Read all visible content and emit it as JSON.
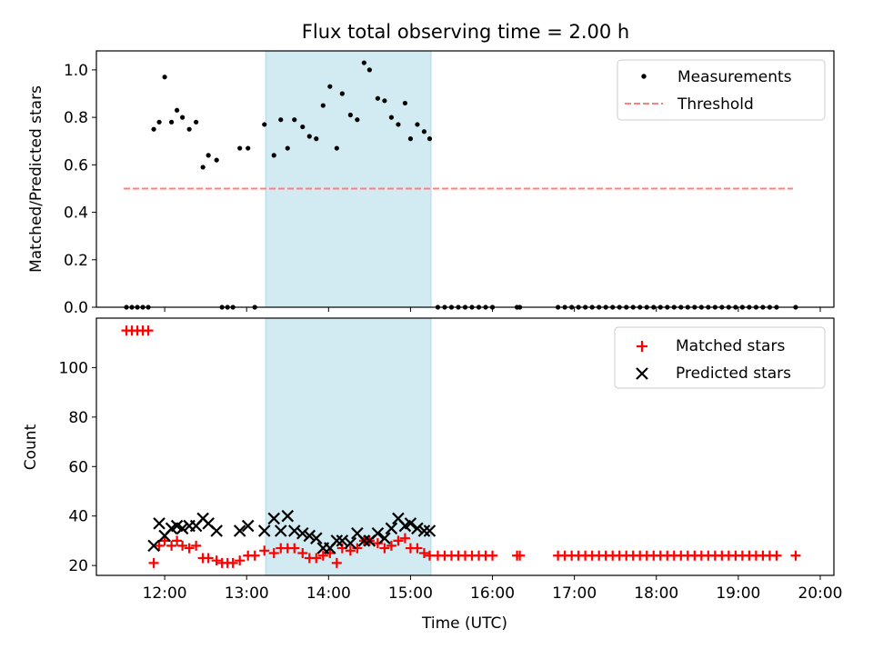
{
  "figure": {
    "title": "Flux total observing time = 2.00 h"
  },
  "colors": {
    "highlight": "#add8e6",
    "threshold": "#ff7f7f",
    "measurements": "#000000",
    "matched": "#ff0000",
    "predicted": "#000000"
  },
  "chart_data": [
    {
      "type": "scatter",
      "ylabel": "Matched/Predicted stars",
      "xlabel": "",
      "xlim": [
        "11:10",
        "20:10"
      ],
      "ylim": [
        0,
        1.08
      ],
      "yticks": [
        0.0,
        0.2,
        0.4,
        0.6,
        0.8,
        1.0
      ],
      "ytick_labels": [
        "0.0",
        "0.2",
        "0.4",
        "0.6",
        "0.8",
        "1.0"
      ],
      "xticks": [
        "12:00",
        "13:00",
        "14:00",
        "15:00",
        "16:00",
        "17:00",
        "18:00",
        "19:00",
        "20:00"
      ],
      "highlight_span": [
        "13:14",
        "15:15"
      ],
      "legend": {
        "position": "upper right",
        "entries": [
          "Measurements",
          "Threshold"
        ]
      },
      "threshold": {
        "name": "Threshold",
        "value": 0.5,
        "x_range": [
          "11:30",
          "19:40"
        ]
      },
      "series": [
        {
          "name": "Measurements",
          "points": [
            [
              "11:32",
              0
            ],
            [
              "11:36",
              0
            ],
            [
              "11:40",
              0
            ],
            [
              "11:44",
              0
            ],
            [
              "11:48",
              0
            ],
            [
              "11:52",
              0.75
            ],
            [
              "11:56",
              0.78
            ],
            [
              "12:00",
              0.97
            ],
            [
              "12:05",
              0.78
            ],
            [
              "12:09",
              0.83
            ],
            [
              "12:13",
              0.8
            ],
            [
              "12:18",
              0.75
            ],
            [
              "12:23",
              0.78
            ],
            [
              "12:28",
              0.59
            ],
            [
              "12:32",
              0.64
            ],
            [
              "12:38",
              0.62
            ],
            [
              "12:42",
              0
            ],
            [
              "12:46",
              0
            ],
            [
              "12:50",
              0
            ],
            [
              "12:55",
              0.67
            ],
            [
              "13:01",
              0.67
            ],
            [
              "13:06",
              0
            ],
            [
              "13:13",
              0.77
            ],
            [
              "13:20",
              0.64
            ],
            [
              "13:25",
              0.79
            ],
            [
              "13:30",
              0.67
            ],
            [
              "13:35",
              0.79
            ],
            [
              "13:41",
              0.76
            ],
            [
              "13:46",
              0.72
            ],
            [
              "13:51",
              0.71
            ],
            [
              "13:56",
              0.85
            ],
            [
              "14:01",
              0.93
            ],
            [
              "14:06",
              0.67
            ],
            [
              "14:10",
              0.9
            ],
            [
              "14:16",
              0.81
            ],
            [
              "14:21",
              0.79
            ],
            [
              "14:26",
              1.03
            ],
            [
              "14:30",
              1.0
            ],
            [
              "14:36",
              0.88
            ],
            [
              "14:41",
              0.87
            ],
            [
              "14:46",
              0.8
            ],
            [
              "14:51",
              0.77
            ],
            [
              "14:56",
              0.86
            ],
            [
              "15:00",
              0.71
            ],
            [
              "15:05",
              0.77
            ],
            [
              "15:10",
              0.74
            ],
            [
              "15:14",
              0.71
            ],
            [
              "15:20",
              0
            ],
            [
              "15:25",
              0
            ],
            [
              "15:30",
              0
            ],
            [
              "15:35",
              0
            ],
            [
              "15:40",
              0
            ],
            [
              "15:45",
              0
            ],
            [
              "15:50",
              0
            ],
            [
              "15:55",
              0
            ],
            [
              "16:00",
              0
            ],
            [
              "16:18",
              0
            ],
            [
              "16:20",
              0
            ],
            [
              "16:48",
              0
            ],
            [
              "16:53",
              0
            ],
            [
              "16:58",
              0
            ],
            [
              "17:03",
              0
            ],
            [
              "17:08",
              0
            ],
            [
              "17:13",
              0
            ],
            [
              "17:18",
              0
            ],
            [
              "17:23",
              0
            ],
            [
              "17:28",
              0
            ],
            [
              "17:33",
              0
            ],
            [
              "17:38",
              0
            ],
            [
              "17:43",
              0
            ],
            [
              "17:48",
              0
            ],
            [
              "17:53",
              0
            ],
            [
              "17:58",
              0
            ],
            [
              "18:03",
              0
            ],
            [
              "18:08",
              0
            ],
            [
              "18:13",
              0
            ],
            [
              "18:18",
              0
            ],
            [
              "18:23",
              0
            ],
            [
              "18:28",
              0
            ],
            [
              "18:33",
              0
            ],
            [
              "18:38",
              0
            ],
            [
              "18:43",
              0
            ],
            [
              "18:48",
              0
            ],
            [
              "18:53",
              0
            ],
            [
              "18:58",
              0
            ],
            [
              "19:03",
              0
            ],
            [
              "19:08",
              0
            ],
            [
              "19:13",
              0
            ],
            [
              "19:18",
              0
            ],
            [
              "19:23",
              0
            ],
            [
              "19:28",
              0
            ],
            [
              "19:42",
              0
            ]
          ]
        }
      ]
    },
    {
      "type": "scatter",
      "ylabel": "Count",
      "xlabel": "Time (UTC)",
      "xlim": [
        "11:10",
        "20:10"
      ],
      "ylim": [
        16,
        120
      ],
      "yticks": [
        20,
        40,
        60,
        80,
        100
      ],
      "ytick_labels": [
        "20",
        "40",
        "60",
        "80",
        "100"
      ],
      "xticks": [
        "12:00",
        "13:00",
        "14:00",
        "15:00",
        "16:00",
        "17:00",
        "18:00",
        "19:00",
        "20:00"
      ],
      "xtick_labels": [
        "12:00",
        "13:00",
        "14:00",
        "15:00",
        "16:00",
        "17:00",
        "18:00",
        "19:00",
        "20:00"
      ],
      "highlight_span": [
        "13:14",
        "15:15"
      ],
      "legend": {
        "position": "upper right",
        "entries": [
          "Matched stars",
          "Predicted stars"
        ]
      },
      "series": [
        {
          "name": "Matched stars",
          "marker": "plus",
          "points": [
            [
              "11:32",
              115
            ],
            [
              "11:36",
              115
            ],
            [
              "11:40",
              115
            ],
            [
              "11:44",
              115
            ],
            [
              "11:48",
              115
            ],
            [
              "11:52",
              21
            ],
            [
              "11:56",
              28
            ],
            [
              "12:00",
              30
            ],
            [
              "12:05",
              28
            ],
            [
              "12:09",
              30
            ],
            [
              "12:13",
              28
            ],
            [
              "12:18",
              27
            ],
            [
              "12:23",
              28
            ],
            [
              "12:28",
              23
            ],
            [
              "12:32",
              23
            ],
            [
              "12:38",
              22
            ],
            [
              "12:42",
              21
            ],
            [
              "12:46",
              21
            ],
            [
              "12:50",
              21
            ],
            [
              "12:55",
              22
            ],
            [
              "13:01",
              24
            ],
            [
              "13:06",
              24
            ],
            [
              "13:13",
              26
            ],
            [
              "13:20",
              25
            ],
            [
              "13:25",
              27
            ],
            [
              "13:30",
              27
            ],
            [
              "13:35",
              27
            ],
            [
              "13:41",
              25
            ],
            [
              "13:46",
              23
            ],
            [
              "13:51",
              23
            ],
            [
              "13:56",
              24
            ],
            [
              "14:01",
              25
            ],
            [
              "14:06",
              21
            ],
            [
              "14:10",
              27
            ],
            [
              "14:16",
              26
            ],
            [
              "14:21",
              27
            ],
            [
              "14:26",
              30
            ],
            [
              "14:30",
              30
            ],
            [
              "14:36",
              29
            ],
            [
              "14:41",
              27
            ],
            [
              "14:46",
              28
            ],
            [
              "14:51",
              30
            ],
            [
              "14:56",
              31
            ],
            [
              "15:00",
              27
            ],
            [
              "15:05",
              27
            ],
            [
              "15:10",
              25
            ],
            [
              "15:14",
              24
            ],
            [
              "15:20",
              24
            ],
            [
              "15:25",
              24
            ],
            [
              "15:30",
              24
            ],
            [
              "15:35",
              24
            ],
            [
              "15:40",
              24
            ],
            [
              "15:45",
              24
            ],
            [
              "15:50",
              24
            ],
            [
              "15:55",
              24
            ],
            [
              "16:00",
              24
            ],
            [
              "16:18",
              24
            ],
            [
              "16:20",
              24
            ],
            [
              "16:48",
              24
            ],
            [
              "16:53",
              24
            ],
            [
              "16:58",
              24
            ],
            [
              "17:03",
              24
            ],
            [
              "17:08",
              24
            ],
            [
              "17:13",
              24
            ],
            [
              "17:18",
              24
            ],
            [
              "17:23",
              24
            ],
            [
              "17:28",
              24
            ],
            [
              "17:33",
              24
            ],
            [
              "17:38",
              24
            ],
            [
              "17:43",
              24
            ],
            [
              "17:48",
              24
            ],
            [
              "17:53",
              24
            ],
            [
              "17:58",
              24
            ],
            [
              "18:03",
              24
            ],
            [
              "18:08",
              24
            ],
            [
              "18:13",
              24
            ],
            [
              "18:18",
              24
            ],
            [
              "18:23",
              24
            ],
            [
              "18:28",
              24
            ],
            [
              "18:33",
              24
            ],
            [
              "18:38",
              24
            ],
            [
              "18:43",
              24
            ],
            [
              "18:48",
              24
            ],
            [
              "18:53",
              24
            ],
            [
              "18:58",
              24
            ],
            [
              "19:03",
              24
            ],
            [
              "19:08",
              24
            ],
            [
              "19:13",
              24
            ],
            [
              "19:18",
              24
            ],
            [
              "19:23",
              24
            ],
            [
              "19:28",
              24
            ],
            [
              "19:42",
              24
            ]
          ]
        },
        {
          "name": "Predicted stars",
          "marker": "x",
          "points": [
            [
              "11:52",
              28
            ],
            [
              "11:56",
              37
            ],
            [
              "12:00",
              32
            ],
            [
              "12:05",
              35
            ],
            [
              "12:09",
              36
            ],
            [
              "12:13",
              35
            ],
            [
              "12:18",
              36
            ],
            [
              "12:23",
              36
            ],
            [
              "12:28",
              39
            ],
            [
              "12:32",
              37
            ],
            [
              "12:38",
              34
            ],
            [
              "12:55",
              34
            ],
            [
              "13:01",
              36
            ],
            [
              "13:13",
              34
            ],
            [
              "13:20",
              39
            ],
            [
              "13:25",
              34
            ],
            [
              "13:30",
              40
            ],
            [
              "13:35",
              34
            ],
            [
              "13:41",
              33
            ],
            [
              "13:46",
              32
            ],
            [
              "13:51",
              31
            ],
            [
              "13:56",
              27
            ],
            [
              "14:01",
              27
            ],
            [
              "14:06",
              30
            ],
            [
              "14:10",
              30
            ],
            [
              "14:16",
              29
            ],
            [
              "14:21",
              33
            ],
            [
              "14:26",
              30
            ],
            [
              "14:30",
              30
            ],
            [
              "14:36",
              33
            ],
            [
              "14:41",
              31
            ],
            [
              "14:46",
              35
            ],
            [
              "14:51",
              39
            ],
            [
              "14:56",
              36
            ],
            [
              "15:00",
              37
            ],
            [
              "15:05",
              35
            ],
            [
              "15:10",
              34
            ],
            [
              "15:14",
              34
            ]
          ]
        }
      ]
    }
  ]
}
